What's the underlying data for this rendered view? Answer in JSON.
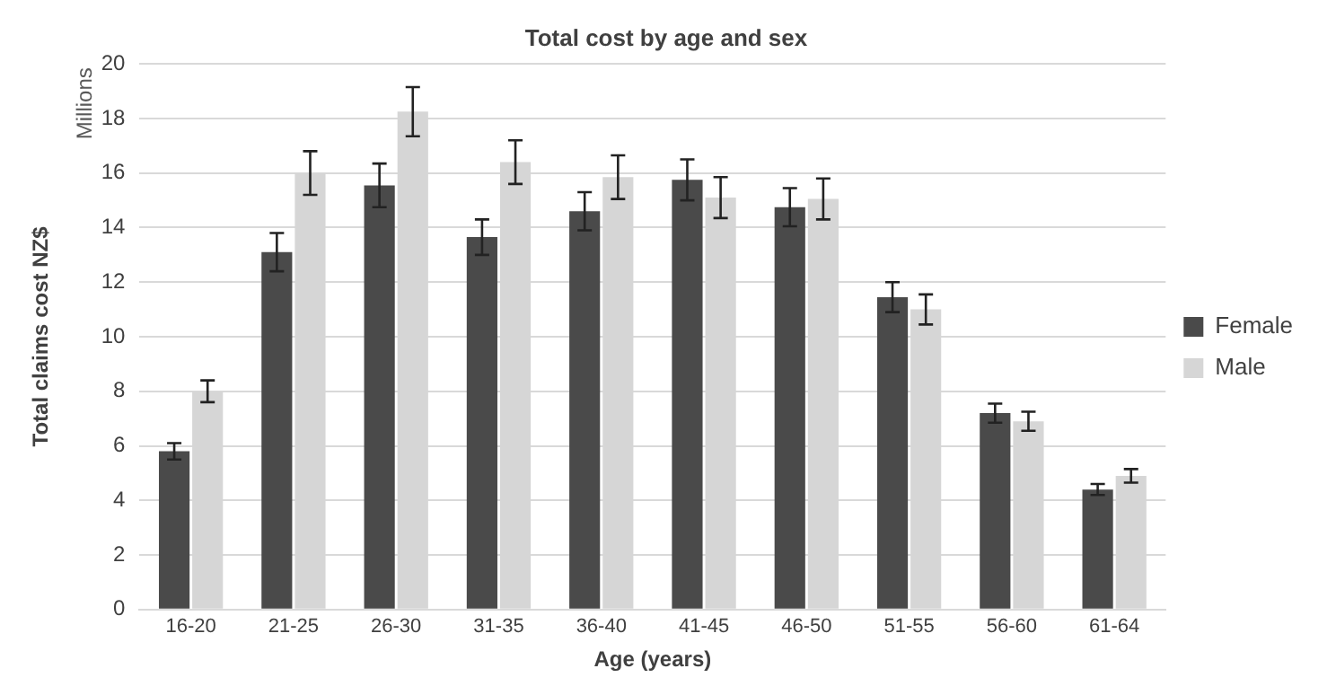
{
  "chart_data": {
    "type": "bar",
    "title": "Total cost by age and sex",
    "xlabel": "Age (years)",
    "ylabel": "Total claims cost NZ$",
    "annotations": [
      "Millions"
    ],
    "categories": [
      "16-20",
      "21-25",
      "26-30",
      "31-35",
      "36-40",
      "41-45",
      "46-50",
      "51-55",
      "56-60",
      "61-64"
    ],
    "series": [
      {
        "name": "Female",
        "color": "#4a4a4a",
        "values": [
          5.8,
          13.1,
          15.55,
          13.65,
          14.6,
          15.75,
          14.75,
          11.45,
          7.2,
          4.4
        ],
        "errors": [
          0.3,
          0.7,
          0.8,
          0.65,
          0.7,
          0.75,
          0.7,
          0.55,
          0.35,
          0.2
        ]
      },
      {
        "name": "Male",
        "color": "#d6d6d6",
        "values": [
          8.0,
          16.0,
          18.25,
          16.4,
          15.85,
          15.1,
          15.05,
          11.0,
          6.9,
          4.9
        ],
        "errors": [
          0.4,
          0.8,
          0.9,
          0.8,
          0.8,
          0.75,
          0.75,
          0.55,
          0.35,
          0.25
        ]
      }
    ],
    "ylim": [
      0,
      20
    ],
    "yticks": [
      0,
      2,
      4,
      6,
      8,
      10,
      12,
      14,
      16,
      18,
      20
    ],
    "grid": "y",
    "legend": "right"
  }
}
